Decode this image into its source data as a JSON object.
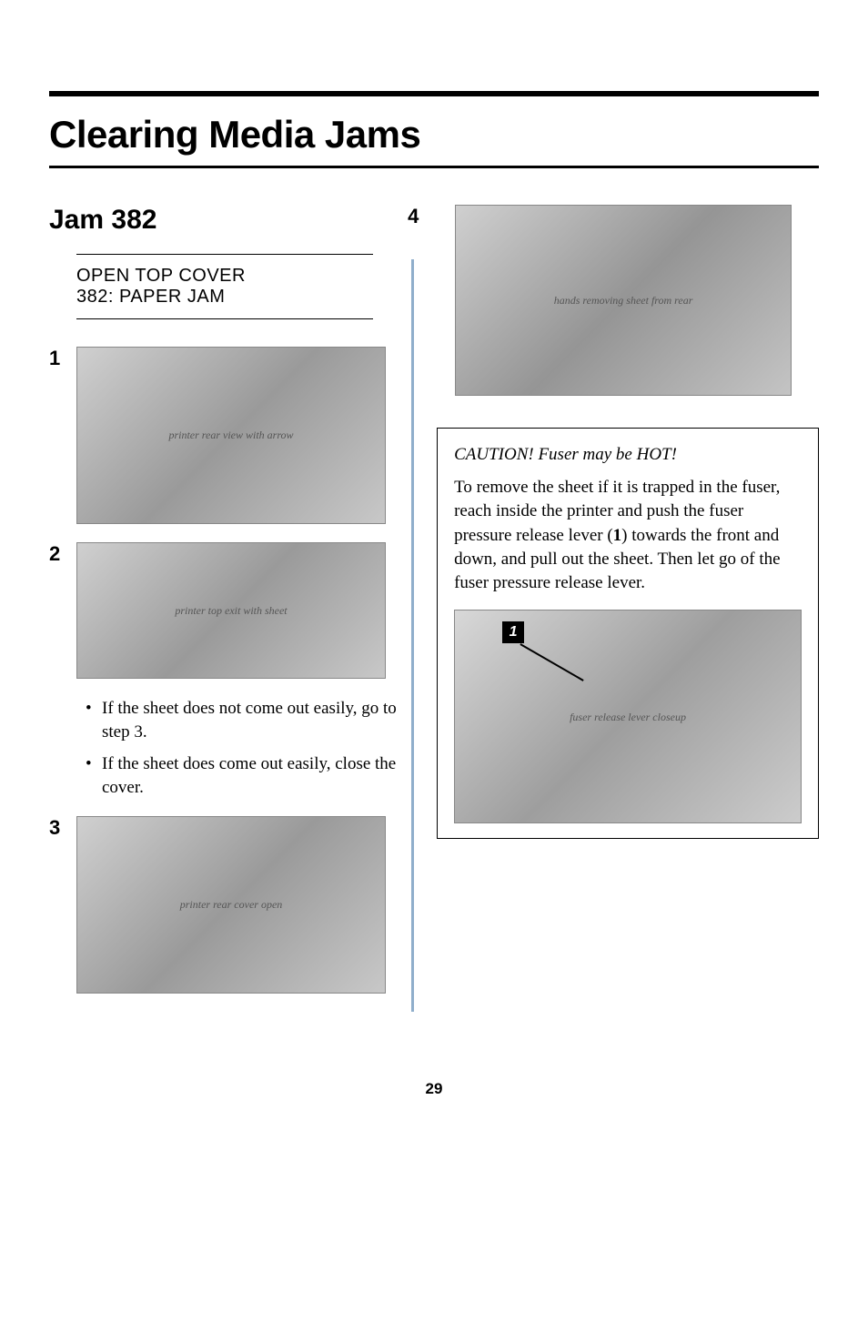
{
  "title": "Clearing Media Jams",
  "section": "Jam 382",
  "display": {
    "line1": "OPEN TOP COVER",
    "line2": "382: PAPER JAM"
  },
  "steps": {
    "s1": "1",
    "s2": "2",
    "s3": "3",
    "s4": "4"
  },
  "bullets": {
    "b1": "If the sheet does not come out easily, go to step 3.",
    "b2": "If the sheet does come out easily, close the cover."
  },
  "caution": {
    "title": "CAUTION! Fuser may be HOT!",
    "text_before": "To remove the sheet if it is trapped in the fuser, reach inside the printer and push the fuser pressure release lever (",
    "ref": "1",
    "text_after": ") towards the front and down, and pull out the sheet. Then let go of the fuser pressure release lever.",
    "callout": "1"
  },
  "image_placeholders": {
    "img1": "printer rear view with arrow",
    "img2": "printer top exit with sheet",
    "img3": "printer rear cover open",
    "img4": "hands removing sheet from rear",
    "inset": "fuser release lever closeup"
  },
  "page_number": "29",
  "colors": {
    "divider": "#8faecb",
    "text": "#000000",
    "background": "#ffffff"
  }
}
